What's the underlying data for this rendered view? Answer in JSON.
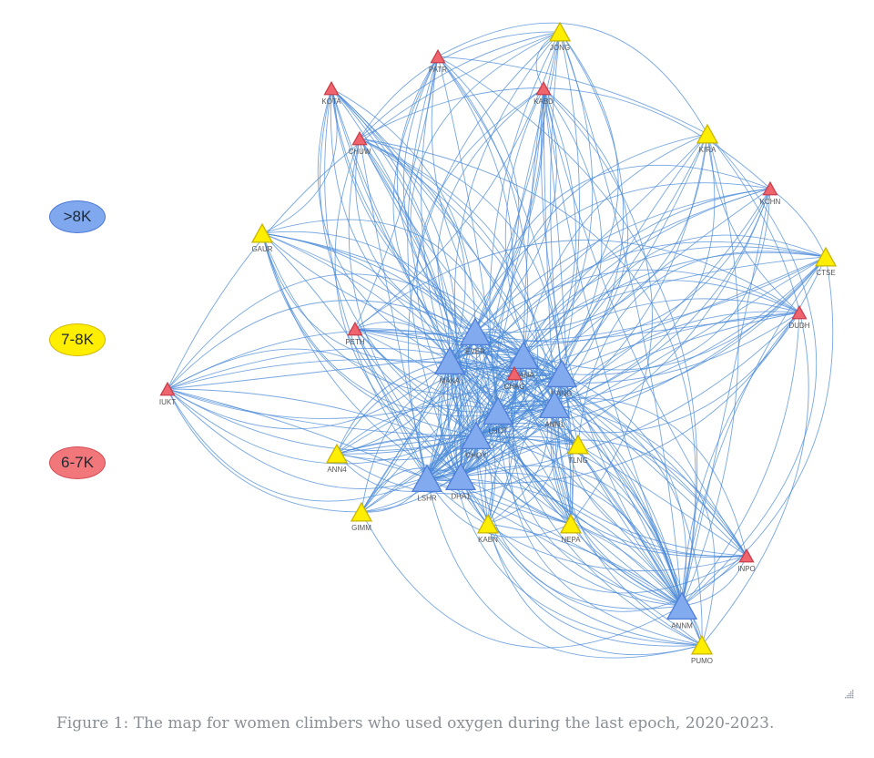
{
  "legend": [
    {
      "label": ">8K",
      "color": "#7fa8ee"
    },
    {
      "label": "7-8K",
      "color": "#ffee00"
    },
    {
      "label": "6-7K",
      "color": "#f2777a"
    }
  ],
  "colors": {
    "blue": "#82aaef",
    "yellow": "#ffee00",
    "red": "#f0646e",
    "edge": "#4a8ad8"
  },
  "nodes": [
    {
      "id": "JONG",
      "tier": "yellow"
    },
    {
      "id": "PATR",
      "tier": "red"
    },
    {
      "id": "KABD",
      "tier": "red"
    },
    {
      "id": "KOTA",
      "tier": "red"
    },
    {
      "id": "CHUW",
      "tier": "red"
    },
    {
      "id": "KIRA",
      "tier": "yellow"
    },
    {
      "id": "KCHN",
      "tier": "red"
    },
    {
      "id": "GAUR",
      "tier": "yellow"
    },
    {
      "id": "CTSE",
      "tier": "yellow"
    },
    {
      "id": "DUDH",
      "tier": "red"
    },
    {
      "id": "PETH",
      "tier": "red"
    },
    {
      "id": "EVER",
      "tier": "blue"
    },
    {
      "id": "MANA",
      "tier": "blue"
    },
    {
      "id": "MAKA",
      "tier": "blue"
    },
    {
      "id": "CHAG",
      "tier": "red"
    },
    {
      "id": "KANG",
      "tier": "blue"
    },
    {
      "id": "IUKT",
      "tier": "red"
    },
    {
      "id": "LHOT",
      "tier": "blue"
    },
    {
      "id": "ANN1",
      "tier": "blue"
    },
    {
      "id": "CHOY",
      "tier": "blue"
    },
    {
      "id": "TLNG",
      "tier": "yellow"
    },
    {
      "id": "ANN4",
      "tier": "yellow"
    },
    {
      "id": "LSHR",
      "tier": "blue"
    },
    {
      "id": "DHA1",
      "tier": "blue"
    },
    {
      "id": "GIMM",
      "tier": "yellow"
    },
    {
      "id": "KABN",
      "tier": "yellow"
    },
    {
      "id": "NEPA",
      "tier": "yellow"
    },
    {
      "id": "INPO",
      "tier": "red"
    },
    {
      "id": "ANNM",
      "tier": "blue"
    },
    {
      "id": "PUMO",
      "tier": "yellow"
    }
  ],
  "caption": "Figure 1: The map for women climbers who used oxygen during the last epoch, 2020-2023."
}
